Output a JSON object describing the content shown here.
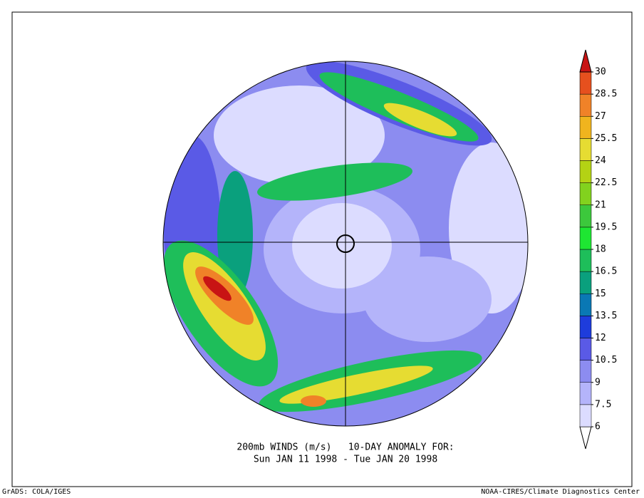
{
  "title": {
    "line1": "200mb WINDS (m/s)   10-DAY ANOMALY FOR:",
    "line2": "Sun JAN 11 1998 - Tue JAN 20 1998"
  },
  "footer": {
    "left": "GrADS: COLA/IGES",
    "right": "NOAA-CIRES/Climate Diagnostics Center"
  },
  "colorbar": {
    "levels": [
      6,
      7.5,
      9,
      10.5,
      12,
      13.5,
      15,
      16.5,
      18,
      19.5,
      21,
      22.5,
      24,
      25.5,
      27,
      28.5,
      30
    ],
    "colors": [
      "#ffffff",
      "#dcdcff",
      "#b4b4fa",
      "#8c8cf0",
      "#5a5ae6",
      "#1e3cdc",
      "#0a78b4",
      "#0aa07d",
      "#1ebe5a",
      "#1ee632",
      "#3cc83c",
      "#82d21e",
      "#b4d214",
      "#e6dc32",
      "#f0b41e",
      "#f08228",
      "#e6501e",
      "#c81414"
    ]
  }
}
